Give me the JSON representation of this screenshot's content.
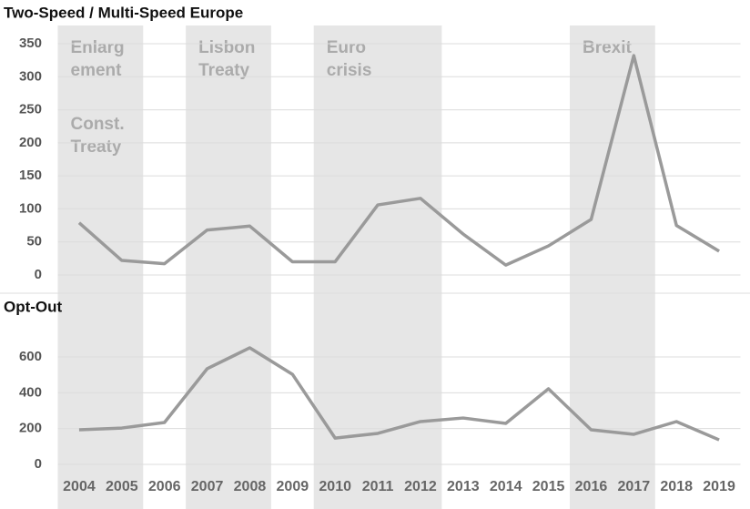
{
  "chart_data": [
    {
      "type": "line",
      "title": "Two-Speed / Multi-Speed Europe",
      "color": "#9a9a9a",
      "values": [
        79,
        22,
        17,
        68,
        74,
        20,
        20,
        106,
        116,
        62,
        15,
        44,
        84,
        332,
        75,
        36
      ],
      "ylim": [
        0,
        350
      ],
      "yticks": [
        0,
        50,
        100,
        150,
        200,
        250,
        300,
        350
      ],
      "grid": true,
      "shaded_periods": [
        {
          "from": "2004",
          "to": "2005",
          "labels": [
            [
              "Enlarg",
              "ement"
            ],
            [
              "Const.",
              "Treaty"
            ]
          ]
        },
        {
          "from": "2007",
          "to": "2008",
          "labels": [
            [
              "Lisbon",
              "Treaty"
            ]
          ]
        },
        {
          "from": "2010",
          "to": "2012",
          "labels": [
            [
              "Euro",
              "crisis"
            ]
          ]
        },
        {
          "from": "2016",
          "to": "2017",
          "labels": [
            [
              "Brexit"
            ]
          ]
        }
      ]
    },
    {
      "type": "line",
      "title": "Opt-Out",
      "color": "#9a9a9a",
      "categories": [
        "2004",
        "2005",
        "2006",
        "2007",
        "2008",
        "2009",
        "2010",
        "2011",
        "2012",
        "2013",
        "2014",
        "2015",
        "2016",
        "2017",
        "2018",
        "2019"
      ],
      "values": [
        193,
        203,
        234,
        534,
        651,
        503,
        147,
        173,
        239,
        259,
        229,
        422,
        193,
        168,
        239,
        137
      ],
      "ylim": [
        0,
        600
      ],
      "yticks": [
        0,
        200,
        400,
        600
      ],
      "grid": true
    }
  ]
}
